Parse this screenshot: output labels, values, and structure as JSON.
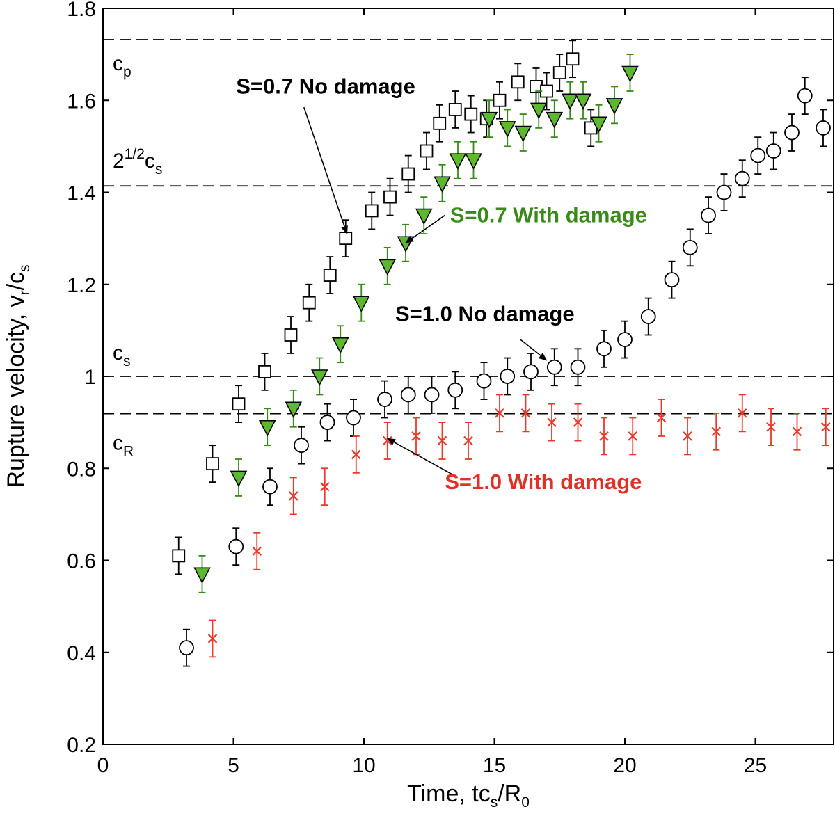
{
  "chart_data": {
    "type": "scatter",
    "xlabel": {
      "main": "Time, tc",
      "sub1": "s",
      "mid": "/R",
      "sub2": "0"
    },
    "ylabel": {
      "main": "Rupture velocity, v",
      "sub1": "r",
      "mid": "/c",
      "sub2": "s"
    },
    "xlim": [
      0,
      28
    ],
    "ylim": [
      0.2,
      1.8
    ],
    "xticks": [
      0,
      5,
      10,
      15,
      20,
      25
    ],
    "xtick_labels": [
      "0",
      "5",
      "10",
      "15",
      "20",
      "25"
    ],
    "yticks": [
      0.2,
      0.4,
      0.6,
      0.8,
      1.0,
      1.2,
      1.4,
      1.6,
      1.8
    ],
    "ytick_labels": [
      "0.2",
      "0.4",
      "0.6",
      "0.8",
      "1",
      "1.2",
      "1.4",
      "1.6",
      "1.8"
    ],
    "grid": false,
    "reference_lines": [
      {
        "y": 1.732,
        "label": "c",
        "sub": "p",
        "sup": ""
      },
      {
        "y": 1.414,
        "label": "2",
        "sup": "1/2",
        "label2": "c",
        "sub": "s"
      },
      {
        "y": 1.0,
        "label": "c",
        "sub": "s",
        "sup": ""
      },
      {
        "y": 0.919,
        "label": "c",
        "sub": "R",
        "sup": ""
      }
    ],
    "series": [
      {
        "name": "S=0.7 No damage",
        "marker": "square",
        "color": "#000000",
        "fill": "#ffffff",
        "err_color": "#000000",
        "points": [
          [
            2.9,
            0.61
          ],
          [
            4.2,
            0.81
          ],
          [
            5.2,
            0.94
          ],
          [
            6.2,
            1.01
          ],
          [
            7.2,
            1.09
          ],
          [
            7.9,
            1.16
          ],
          [
            8.7,
            1.22
          ],
          [
            9.3,
            1.3
          ],
          [
            10.3,
            1.36
          ],
          [
            11.0,
            1.39
          ],
          [
            11.7,
            1.44
          ],
          [
            12.4,
            1.49
          ],
          [
            12.9,
            1.55
          ],
          [
            13.5,
            1.58
          ],
          [
            14.1,
            1.57
          ],
          [
            14.7,
            1.56
          ],
          [
            15.2,
            1.6
          ],
          [
            15.9,
            1.64
          ],
          [
            16.6,
            1.63
          ],
          [
            17.0,
            1.62
          ],
          [
            17.5,
            1.66
          ],
          [
            18.0,
            1.69
          ],
          [
            18.7,
            1.54
          ]
        ],
        "err": 0.04
      },
      {
        "name": "S=0.7 With damage",
        "marker": "triangle-down",
        "color": "#000000",
        "fill": "#5cb82e",
        "err_color": "#3a8a1a",
        "points": [
          [
            3.8,
            0.57
          ],
          [
            5.2,
            0.78
          ],
          [
            6.3,
            0.89
          ],
          [
            7.3,
            0.93
          ],
          [
            8.3,
            1.0
          ],
          [
            9.1,
            1.07
          ],
          [
            9.9,
            1.16
          ],
          [
            10.9,
            1.24
          ],
          [
            11.6,
            1.29
          ],
          [
            12.3,
            1.35
          ],
          [
            13.0,
            1.42
          ],
          [
            13.6,
            1.47
          ],
          [
            14.2,
            1.47
          ],
          [
            14.8,
            1.56
          ],
          [
            15.5,
            1.54
          ],
          [
            16.1,
            1.53
          ],
          [
            16.7,
            1.58
          ],
          [
            17.3,
            1.56
          ],
          [
            17.9,
            1.6
          ],
          [
            18.4,
            1.6
          ],
          [
            19.0,
            1.55
          ],
          [
            19.6,
            1.59
          ],
          [
            20.2,
            1.66
          ]
        ],
        "err": 0.04
      },
      {
        "name": "S=1.0 No damage",
        "marker": "circle",
        "color": "#000000",
        "fill": "#ffffff",
        "err_color": "#000000",
        "points": [
          [
            3.2,
            0.41
          ],
          [
            5.1,
            0.63
          ],
          [
            6.4,
            0.76
          ],
          [
            7.6,
            0.85
          ],
          [
            8.6,
            0.9
          ],
          [
            9.6,
            0.91
          ],
          [
            10.8,
            0.95
          ],
          [
            11.7,
            0.96
          ],
          [
            12.6,
            0.96
          ],
          [
            13.5,
            0.97
          ],
          [
            14.6,
            0.99
          ],
          [
            15.5,
            1.0
          ],
          [
            16.4,
            1.01
          ],
          [
            17.3,
            1.02
          ],
          [
            18.2,
            1.02
          ],
          [
            19.2,
            1.06
          ],
          [
            20.0,
            1.08
          ],
          [
            20.9,
            1.13
          ],
          [
            21.8,
            1.21
          ],
          [
            22.5,
            1.28
          ],
          [
            23.2,
            1.35
          ],
          [
            23.8,
            1.4
          ],
          [
            24.5,
            1.43
          ],
          [
            25.1,
            1.48
          ],
          [
            25.7,
            1.49
          ],
          [
            26.4,
            1.53
          ],
          [
            26.9,
            1.61
          ],
          [
            27.6,
            1.54
          ]
        ],
        "err": 0.04
      },
      {
        "name": "S=1.0 With damage",
        "marker": "x",
        "color": "#e8392b",
        "fill": "none",
        "err_color": "#e8392b",
        "points": [
          [
            4.2,
            0.43
          ],
          [
            5.9,
            0.62
          ],
          [
            7.3,
            0.74
          ],
          [
            8.5,
            0.76
          ],
          [
            9.7,
            0.83
          ],
          [
            10.9,
            0.86
          ],
          [
            12.0,
            0.87
          ],
          [
            13.0,
            0.86
          ],
          [
            14.0,
            0.86
          ],
          [
            15.2,
            0.92
          ],
          [
            16.2,
            0.92
          ],
          [
            17.2,
            0.9
          ],
          [
            18.2,
            0.9
          ],
          [
            19.2,
            0.87
          ],
          [
            20.3,
            0.87
          ],
          [
            21.4,
            0.91
          ],
          [
            22.4,
            0.87
          ],
          [
            23.5,
            0.88
          ],
          [
            24.5,
            0.92
          ],
          [
            25.6,
            0.89
          ],
          [
            26.6,
            0.88
          ],
          [
            27.7,
            0.89
          ]
        ],
        "err": 0.04
      }
    ],
    "annotations": [
      {
        "text": "S=0.7 No damage",
        "color": "#000000",
        "tx": 5.1,
        "ty": 1.615,
        "ax": 9.35,
        "ay": 1.31,
        "arrow_from": [
          7.7,
          1.585
        ]
      },
      {
        "text": "S=0.7 With damage",
        "color": "#3a8a1a",
        "tx": 13.3,
        "ty": 1.335,
        "ax": 11.6,
        "ay": 1.29,
        "arrow_from": [
          13.1,
          1.35
        ]
      },
      {
        "text": "S=1.0 No damage",
        "color": "#000000",
        "tx": 11.2,
        "ty": 1.12,
        "ax": 17.0,
        "ay": 1.035,
        "arrow_from": [
          16.0,
          1.08
        ]
      },
      {
        "text": "S=1.0 With damage",
        "color": "#e03126",
        "tx": 13.1,
        "ty": 0.755,
        "ax": 10.9,
        "ay": 0.865,
        "arrow_from": [
          13.6,
          0.78
        ]
      }
    ]
  }
}
